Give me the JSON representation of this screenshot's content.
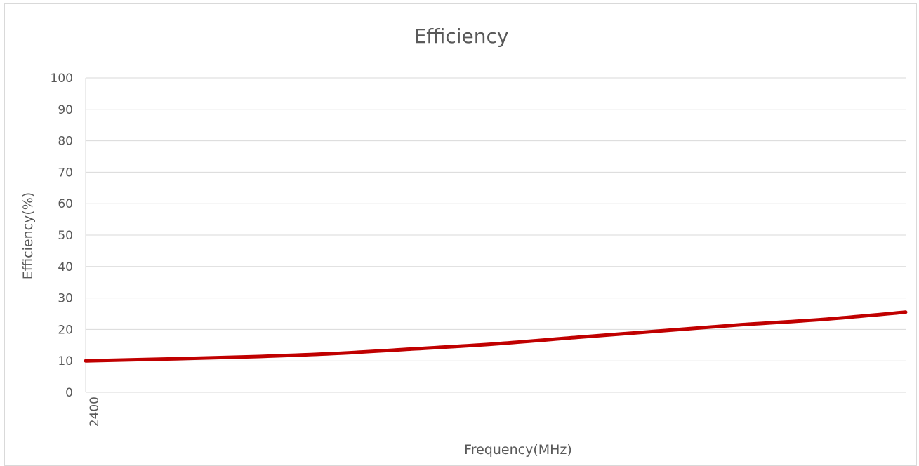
{
  "chart_data": {
    "type": "line",
    "title": "Efficiency",
    "xlabel": "Frequency(MHz)",
    "ylabel": "Efficiency(%)",
    "ylim": [
      0,
      100
    ],
    "yticks": [
      "0",
      "10",
      "20",
      "30",
      "40",
      "50",
      "60",
      "70",
      "80",
      "90",
      "100"
    ],
    "xticks": [
      "2400"
    ],
    "x": [
      0,
      1,
      2,
      3,
      4,
      5,
      6,
      7,
      8,
      9,
      10
    ],
    "series": [
      {
        "values": [
          10,
          10.6,
          11.3,
          12.3,
          13.8,
          15.4,
          17.5,
          19.5,
          21.5,
          23.2,
          25.5
        ],
        "color": "#c00000"
      }
    ],
    "grid": true,
    "legend": "none"
  }
}
